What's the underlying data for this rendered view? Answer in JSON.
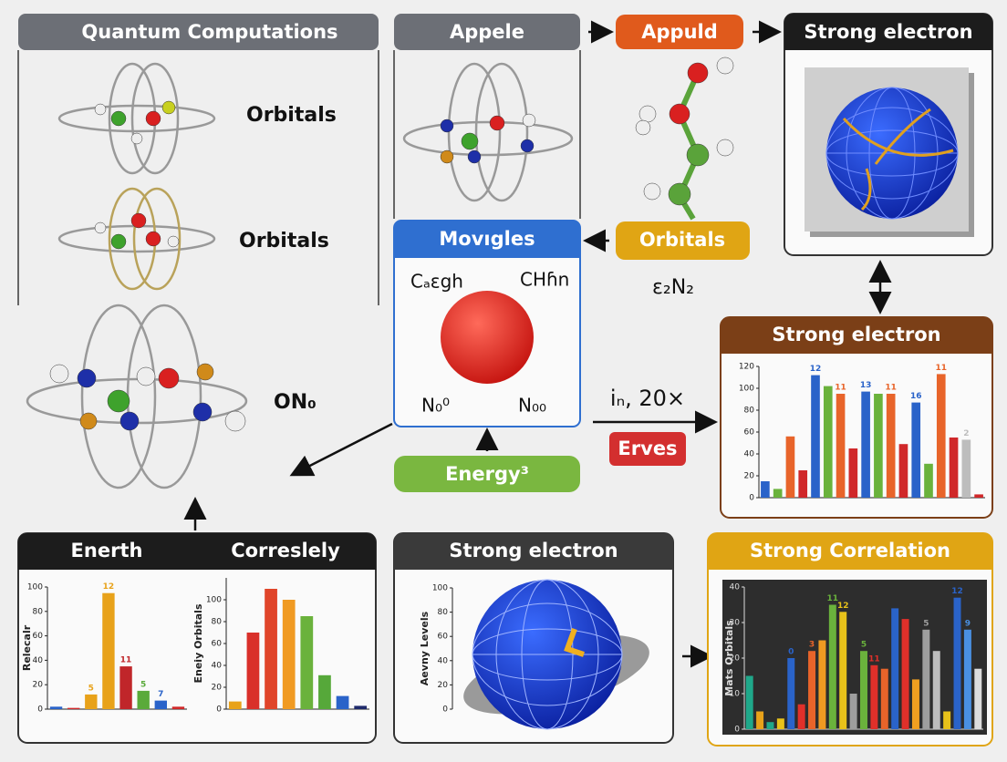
{
  "panels": {
    "quantum": {
      "title": "Quantum Computations",
      "labels": [
        "Orbitals",
        "Orbitals",
        "ON₀"
      ]
    },
    "appele": {
      "title": "Appele"
    },
    "appuld": {
      "title": "Appuld"
    },
    "strong_top": {
      "title": "Strong electron"
    },
    "movigles": {
      "title": "Movıgles",
      "labels": [
        "Cₐεgh",
        "CHɦn",
        "N₀⁰",
        "N₀₀"
      ]
    },
    "orbitals": {
      "title": "Orbitals",
      "formula": "ε₂N₂"
    },
    "energy": {
      "title": "Energy³"
    },
    "flow": {
      "label": "iₙ, 20×",
      "tag": "Erves"
    }
  },
  "charts": [
    {
      "type": "bar",
      "title": "Strong electron",
      "ylim": [
        0,
        120
      ],
      "yticks": [
        0,
        20,
        40,
        60,
        80,
        100,
        120
      ],
      "values": [
        15,
        8,
        56,
        25,
        112,
        102,
        95,
        45,
        97,
        95,
        95,
        49,
        87,
        31,
        113,
        55,
        53,
        3
      ],
      "colors": [
        "#2a63c9",
        "#6ab23c",
        "#e8642a",
        "#d0282a",
        "#2a63c9",
        "#6ab23c",
        "#e8642a",
        "#d0282a",
        "#2a63c9",
        "#6ab23c",
        "#e8642a",
        "#d0282a",
        "#2a63c9",
        "#6ab23c",
        "#e8642a",
        "#d0282a",
        "#bdbdbd",
        "#d0282a"
      ],
      "annotations": [
        "12",
        "11",
        "13",
        "11",
        "16",
        "11",
        "2"
      ]
    },
    {
      "type": "bar",
      "title": "Enerth",
      "ylabel": "Relecalr",
      "ylim": [
        0,
        100
      ],
      "yticks": [
        0,
        20,
        40,
        60,
        80,
        100
      ],
      "values": [
        2,
        1,
        12,
        95,
        35,
        15,
        7,
        2
      ],
      "colors": [
        "#2a63c9",
        "#d0282a",
        "#e8a21a",
        "#e8a21a",
        "#c0262a",
        "#5aaa3a",
        "#2a63c9",
        "#d0282a"
      ],
      "annotations": [
        "5",
        "12",
        "11",
        "5",
        "7"
      ]
    },
    {
      "type": "bar",
      "title": "Correslely",
      "ylabel": "Eneiy Orbitals",
      "ylim": [
        0,
        120
      ],
      "yticks": [
        0,
        20,
        40,
        60,
        80,
        100
      ],
      "values": [
        7,
        70,
        110,
        100,
        85,
        31,
        12,
        3
      ],
      "colors": [
        "#e8a21a",
        "#d9302a",
        "#e0452a",
        "#f09a22",
        "#6ab23c",
        "#56a83a",
        "#2a63c9",
        "#1f2a6b"
      ]
    },
    {
      "type": "globe",
      "title": "Strong electron",
      "ylabel": "Aevny Levels",
      "ylim": [
        0,
        100
      ],
      "yticks": [
        0,
        20,
        40,
        60,
        80,
        100
      ]
    },
    {
      "type": "bar",
      "title": "Strong Correlation",
      "ylabel": "Mats Orbitals",
      "ylim": [
        0,
        40
      ],
      "yticks": [
        0,
        10,
        20,
        30,
        40
      ],
      "values": [
        15,
        5,
        2,
        3,
        20,
        7,
        22,
        25,
        35,
        33,
        10,
        22,
        18,
        17,
        34,
        31,
        14,
        28,
        22,
        5,
        37,
        28,
        17
      ],
      "colors": [
        "#1fa88a",
        "#e8a21a",
        "#1fa88a",
        "#e8c21a",
        "#2a63c9",
        "#e0302a",
        "#e8642a",
        "#f09a22",
        "#6ab23c",
        "#e8c21a",
        "#9e9e9e",
        "#6ab23c",
        "#e0302a",
        "#e8642a",
        "#2a63c9",
        "#e0302a",
        "#f0a020",
        "#9e9e9e",
        "#bdbdbd",
        "#e8c21a",
        "#2a63c9",
        "#4a90e2",
        "#dddddd"
      ],
      "annotations": [
        "0",
        "3",
        "11",
        "12",
        "5",
        "11",
        "5",
        "12",
        "9"
      ]
    }
  ]
}
